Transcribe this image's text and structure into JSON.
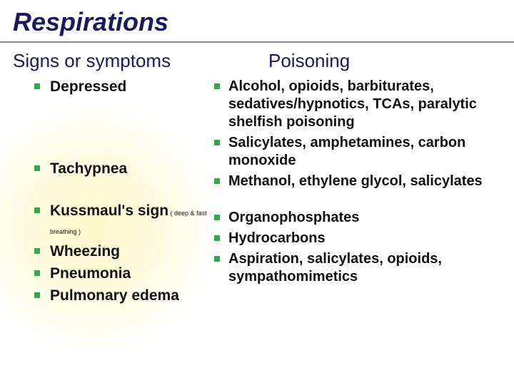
{
  "title": "Respirations",
  "subhead_left": "Signs or symptoms",
  "subhead_right": "Poisoning",
  "left": [
    {
      "text": "Depressed",
      "gap_after": 84
    },
    {
      "text": "Tachypnea",
      "gap_after": 28
    },
    {
      "text": "Kussmaul's sign",
      "sub": " ( deep & fast breathing )",
      "gap_after": 0
    },
    {
      "text": "Wheezing",
      "gap_after": 0
    },
    {
      "text": "Pneumonia",
      "gap_after": 0
    },
    {
      "text": "Pulmonary edema",
      "gap_after": 0
    }
  ],
  "right": [
    {
      "text": "Alcohol, opioids, barbiturates, sedatives/hypnotics, TCAs, paralytic shelfish poisoning"
    },
    {
      "text": "Salicylates, amphetamines, carbon monoxide"
    },
    {
      "text": "Methanol, ethylene glycol, salicylates",
      "gap_after": 22
    },
    {
      "text": "Organophosphates"
    },
    {
      "text": "Hydrocarbons"
    },
    {
      "text": "Aspiration, salicylates, opioids, sympathomimetics"
    }
  ],
  "colors": {
    "title": "#1a1a5c",
    "bullet": "#2fa84f",
    "text": "#111111",
    "background": "#ffffff"
  }
}
